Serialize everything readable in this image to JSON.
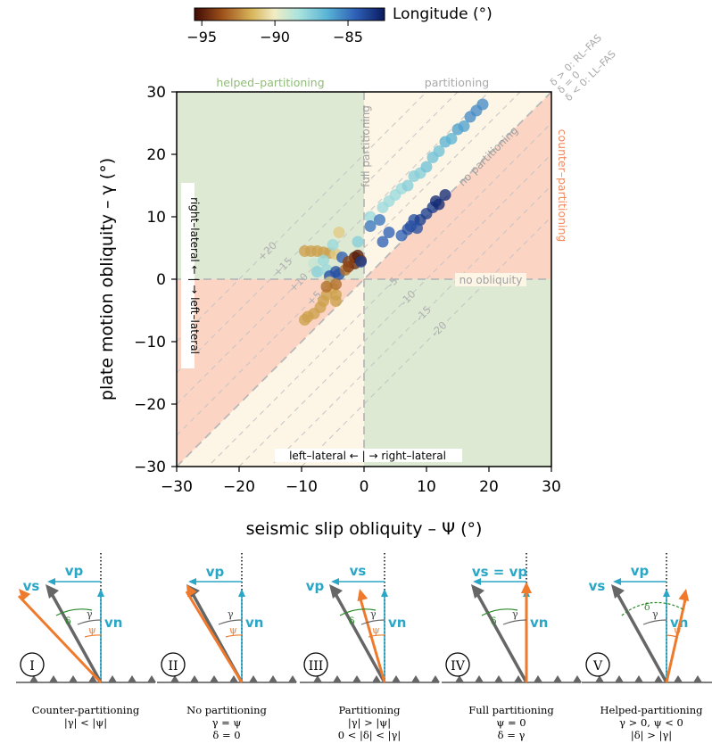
{
  "chart_data": {
    "type": "scatter",
    "xlabel": "seismic slip obliquity – Ψ (°)",
    "ylabel": "plate motion obliquity – γ (°)",
    "xlim": [
      -30,
      30
    ],
    "ylim": [
      -30,
      30
    ],
    "xticks": [
      "−30",
      "−20",
      "−10",
      "0",
      "10",
      "20",
      "30"
    ],
    "yticks": [
      "−30",
      "−20",
      "−10",
      "0",
      "10",
      "20",
      "30"
    ],
    "colorbar": {
      "label": "Longitude (°)",
      "min": -95.5,
      "max": -82.5,
      "ticks": [
        "−95",
        "−90",
        "−85"
      ],
      "tick_values": [
        -95,
        -90,
        -85
      ]
    },
    "region_labels": {
      "helped": "helped–partitioning",
      "partitioning": "partitioning",
      "counter": "counter–partitioning",
      "full": "full partitioning",
      "no_partitioning": "no partitioning",
      "no_obliquity": "no obliquity"
    },
    "delta_legend": [
      "δ > 0: RL–FAS",
      "δ = 0",
      "δ < 0: LL–FAS"
    ],
    "axis_annotations": {
      "x": "left–lateral ← | → right–lateral",
      "y": "right–lateral ← | → left–lateral"
    },
    "delta_lines": [
      {
        "delta": 20,
        "label": "+20"
      },
      {
        "delta": 15,
        "label": "+15"
      },
      {
        "delta": 10,
        "label": "+10"
      },
      {
        "delta": 5,
        "label": "+5"
      },
      {
        "delta": -5,
        "label": "-5"
      },
      {
        "delta": -10,
        "label": "-10"
      },
      {
        "delta": -15,
        "label": "-15"
      },
      {
        "delta": -20,
        "label": "-20"
      }
    ],
    "points": [
      {
        "x": -9.5,
        "y": 4.5,
        "lon": -92
      },
      {
        "x": -8.5,
        "y": 4.5,
        "lon": -92
      },
      {
        "x": -7.5,
        "y": 4.5,
        "lon": -92
      },
      {
        "x": -6.5,
        "y": 4.3,
        "lon": -92
      },
      {
        "x": -5.5,
        "y": 4.2,
        "lon": -92
      },
      {
        "x": -4.5,
        "y": 4.0,
        "lon": -91
      },
      {
        "x": -8,
        "y": 2.5,
        "lon": -89
      },
      {
        "x": -6.5,
        "y": 3.0,
        "lon": -88
      },
      {
        "x": -7.5,
        "y": 1.2,
        "lon": -87.5
      },
      {
        "x": -6,
        "y": 1.5,
        "lon": -88
      },
      {
        "x": -5,
        "y": 5.5,
        "lon": -88
      },
      {
        "x": -4,
        "y": 7.5,
        "lon": -91
      },
      {
        "x": -1,
        "y": 6,
        "lon": -87.5
      },
      {
        "x": -3.5,
        "y": 3.5,
        "lon": -84.5
      },
      {
        "x": -5.5,
        "y": 0.5,
        "lon": -84
      },
      {
        "x": -4.5,
        "y": 1.2,
        "lon": -84
      },
      {
        "x": -4,
        "y": 0.8,
        "lon": -84
      },
      {
        "x": -3,
        "y": 1.5,
        "lon": -93
      },
      {
        "x": -2.5,
        "y": 2.0,
        "lon": -94
      },
      {
        "x": -1.5,
        "y": 2.5,
        "lon": -94.5
      },
      {
        "x": -1.0,
        "y": 3.8,
        "lon": -95
      },
      {
        "x": -0.5,
        "y": 3.0,
        "lon": -94.5
      },
      {
        "x": -1.5,
        "y": 3.5,
        "lon": -95
      },
      {
        "x": -2.5,
        "y": 2.8,
        "lon": -94
      },
      {
        "x": -0.5,
        "y": 2.8,
        "lon": -83.5
      },
      {
        "x": -5.5,
        "y": -0.5,
        "lon": -91
      },
      {
        "x": -5,
        "y": -1.5,
        "lon": -91.5
      },
      {
        "x": -4.5,
        "y": -2.5,
        "lon": -92
      },
      {
        "x": -4.5,
        "y": -3.5,
        "lon": -92
      },
      {
        "x": -6,
        "y": -2.5,
        "lon": -92
      },
      {
        "x": -6.5,
        "y": -3.5,
        "lon": -92
      },
      {
        "x": -7,
        "y": -4.5,
        "lon": -92
      },
      {
        "x": -8,
        "y": -5.5,
        "lon": -92
      },
      {
        "x": -9,
        "y": -6,
        "lon": -92
      },
      {
        "x": -9.5,
        "y": -6.5,
        "lon": -92
      },
      {
        "x": -6,
        "y": -1.2,
        "lon": -93
      },
      {
        "x": -4.5,
        "y": -0.8,
        "lon": -93
      },
      {
        "x": 1,
        "y": 10,
        "lon": -88
      },
      {
        "x": 3,
        "y": 11.5,
        "lon": -88
      },
      {
        "x": 4,
        "y": 12.5,
        "lon": -88
      },
      {
        "x": 5,
        "y": 13.5,
        "lon": -88
      },
      {
        "x": 6,
        "y": 14.5,
        "lon": -88
      },
      {
        "x": 7,
        "y": 15,
        "lon": -87.5
      },
      {
        "x": 8,
        "y": 16.5,
        "lon": -87.5
      },
      {
        "x": 9,
        "y": 17,
        "lon": -87.5
      },
      {
        "x": 10,
        "y": 18,
        "lon": -87
      },
      {
        "x": 11,
        "y": 19.5,
        "lon": -87
      },
      {
        "x": 12,
        "y": 20.5,
        "lon": -87
      },
      {
        "x": 13,
        "y": 22,
        "lon": -86.5
      },
      {
        "x": 14,
        "y": 22.5,
        "lon": -86.5
      },
      {
        "x": 15,
        "y": 24,
        "lon": -86
      },
      {
        "x": 16,
        "y": 24.5,
        "lon": -86
      },
      {
        "x": 17,
        "y": 26,
        "lon": -85.5
      },
      {
        "x": 18,
        "y": 27,
        "lon": -85.5
      },
      {
        "x": 19,
        "y": 28,
        "lon": -85.5
      },
      {
        "x": 1,
        "y": 8.5,
        "lon": -85
      },
      {
        "x": 2.5,
        "y": 9.5,
        "lon": -85
      },
      {
        "x": 3,
        "y": 6,
        "lon": -84.5
      },
      {
        "x": 4,
        "y": 7.5,
        "lon": -84.5
      },
      {
        "x": 6,
        "y": 7,
        "lon": -84.5
      },
      {
        "x": 7,
        "y": 8,
        "lon": -84
      },
      {
        "x": 7.5,
        "y": 8.5,
        "lon": -84
      },
      {
        "x": 8,
        "y": 9.5,
        "lon": -84
      },
      {
        "x": 9,
        "y": 9.5,
        "lon": -83.5
      },
      {
        "x": 10,
        "y": 10.5,
        "lon": -83.5
      },
      {
        "x": 11,
        "y": 11.5,
        "lon": -83.5
      },
      {
        "x": 12,
        "y": 12,
        "lon": -83
      },
      {
        "x": 13,
        "y": 13.5,
        "lon": -83
      },
      {
        "x": 8.5,
        "y": 8.2,
        "lon": -84
      },
      {
        "x": 11.5,
        "y": 12.5,
        "lon": -83
      }
    ]
  },
  "panels": [
    {
      "roman": "I",
      "top": [
        "vs",
        "vp"
      ],
      "vn": "vn",
      "caption": [
        "Counter-partitioning",
        "|γ| < |ψ|"
      ]
    },
    {
      "roman": "II",
      "top": [
        "vp"
      ],
      "vn": "vn",
      "caption": [
        "No partitioning",
        "γ = ψ",
        "δ = 0"
      ]
    },
    {
      "roman": "III",
      "top": [
        "vp",
        "vs"
      ],
      "vn": "vn",
      "caption": [
        "Partitioning",
        "|γ| > |ψ|",
        "0 < |δ| < |γ|"
      ]
    },
    {
      "roman": "IV",
      "top": [
        "vs = vp"
      ],
      "vn": "vn",
      "caption": [
        "Full partitioning",
        "ψ = 0",
        "δ = γ"
      ]
    },
    {
      "roman": "V",
      "top": [
        "vs",
        "vp"
      ],
      "vn": "vn",
      "caption": [
        "Helped-partitioning",
        "γ > 0, ψ < 0",
        "|δ| > |γ|"
      ]
    }
  ],
  "panel_angles": {
    "gamma": "γ",
    "psi": "ψ",
    "delta": "δ"
  }
}
